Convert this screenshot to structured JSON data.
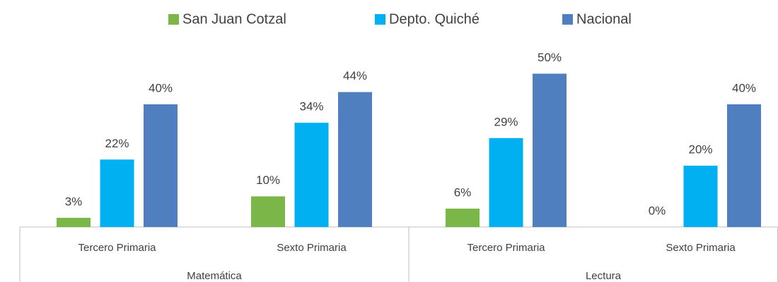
{
  "chart_data": {
    "type": "bar",
    "groups": [
      {
        "name": "Matemática",
        "categories": [
          "Tercero Primaria",
          "Sexto Primaria"
        ]
      },
      {
        "name": "Lectura",
        "categories": [
          "Tercero Primaria",
          "Sexto Primaria"
        ]
      }
    ],
    "series": [
      {
        "name": "San Juan Cotzal",
        "color": "#7ab648",
        "values": [
          3,
          10,
          6,
          0
        ],
        "value_labels": [
          "3%",
          "10%",
          "6%",
          "0%"
        ]
      },
      {
        "name": "Depto. Quiché",
        "color": "#00b0f0",
        "values": [
          22,
          34,
          29,
          20
        ],
        "value_labels": [
          "22%",
          "34%",
          "29%",
          "20%"
        ]
      },
      {
        "name": "Nacional",
        "color": "#4f7fbf",
        "values": [
          40,
          44,
          50,
          40
        ],
        "value_labels": [
          "40%",
          "44%",
          "50%",
          "40%"
        ]
      }
    ],
    "legend": "top"
  }
}
